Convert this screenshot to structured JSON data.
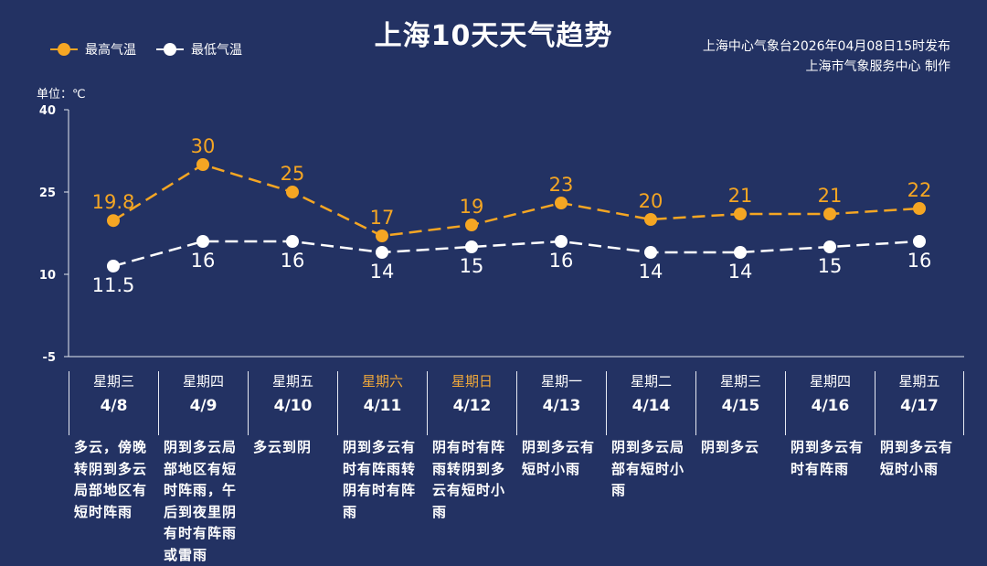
{
  "title": "上海10天天气趋势",
  "source_line1": "上海中心气象台2026年04月08日15时发布",
  "source_line2": "上海市气象服务中心  制作",
  "unit_label": "单位：℃",
  "colors": {
    "background": "#233263",
    "high": "#f5a623",
    "low": "#ffffff",
    "weekend": "#f0a83a"
  },
  "chart_data": {
    "type": "line",
    "ylim": [
      -5,
      40
    ],
    "yticks": [
      "40",
      "25",
      "10",
      "-5"
    ],
    "ytick_values": [
      40,
      25,
      10,
      -5
    ],
    "legend_placement": "top-left",
    "categories": [
      "4/8",
      "4/9",
      "4/10",
      "4/11",
      "4/12",
      "4/13",
      "4/14",
      "4/15",
      "4/16",
      "4/17"
    ],
    "series": [
      {
        "name": "最高气温",
        "values": [
          19.8,
          30,
          25,
          17,
          19,
          23,
          20,
          21,
          21,
          22
        ],
        "labels": [
          "19.8",
          "30",
          "25",
          "17",
          "19",
          "23",
          "20",
          "21",
          "21",
          "22"
        ]
      },
      {
        "name": "最低气温",
        "values": [
          11.5,
          16,
          16,
          14,
          15,
          16,
          14,
          14,
          15,
          16
        ],
        "labels": [
          "11.5",
          "16",
          "16",
          "14",
          "15",
          "16",
          "14",
          "14",
          "15",
          "16"
        ]
      }
    ]
  },
  "days": [
    {
      "weekday": "星期三",
      "date": "4/8",
      "weekend": false,
      "desc": "多云，傍晚转阴到多云局部地区有短时阵雨"
    },
    {
      "weekday": "星期四",
      "date": "4/9",
      "weekend": false,
      "desc": "阴到多云局部地区有短时阵雨，午后到夜里阴有时有阵雨或雷雨"
    },
    {
      "weekday": "星期五",
      "date": "4/10",
      "weekend": false,
      "desc": "多云到阴"
    },
    {
      "weekday": "星期六",
      "date": "4/11",
      "weekend": true,
      "desc": "阴到多云有时有阵雨转阴有时有阵雨"
    },
    {
      "weekday": "星期日",
      "date": "4/12",
      "weekend": true,
      "desc": "阴有时有阵雨转阴到多云有短时小雨"
    },
    {
      "weekday": "星期一",
      "date": "4/13",
      "weekend": false,
      "desc": "阴到多云有短时小雨"
    },
    {
      "weekday": "星期二",
      "date": "4/14",
      "weekend": false,
      "desc": "阴到多云局部有短时小雨"
    },
    {
      "weekday": "星期三",
      "date": "4/15",
      "weekend": false,
      "desc": "阴到多云"
    },
    {
      "weekday": "星期四",
      "date": "4/16",
      "weekend": false,
      "desc": "阴到多云有时有阵雨"
    },
    {
      "weekday": "星期五",
      "date": "4/17",
      "weekend": false,
      "desc": "阴到多云有短时小雨"
    }
  ]
}
